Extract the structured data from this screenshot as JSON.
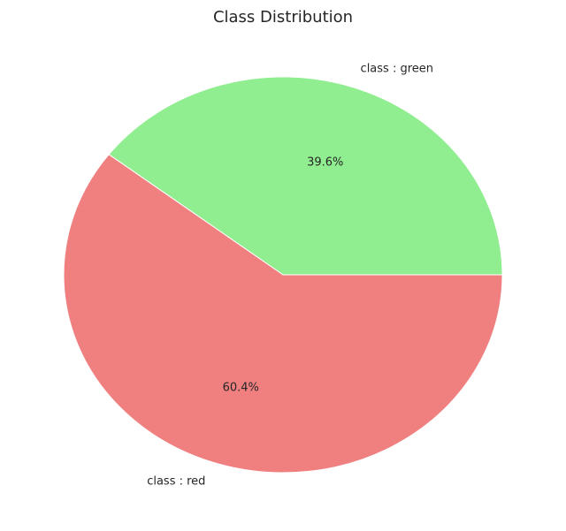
{
  "chart_data": {
    "type": "pie",
    "title": "Class Distribution",
    "start_angle_deg": 0,
    "direction": "counterclockwise",
    "slices": [
      {
        "label": "class : green",
        "value": 39.6,
        "pct_label": "39.6%",
        "color": "#90ee90"
      },
      {
        "label": "class : red",
        "value": 60.4,
        "pct_label": "60.4%",
        "color": "#f08080"
      }
    ]
  }
}
